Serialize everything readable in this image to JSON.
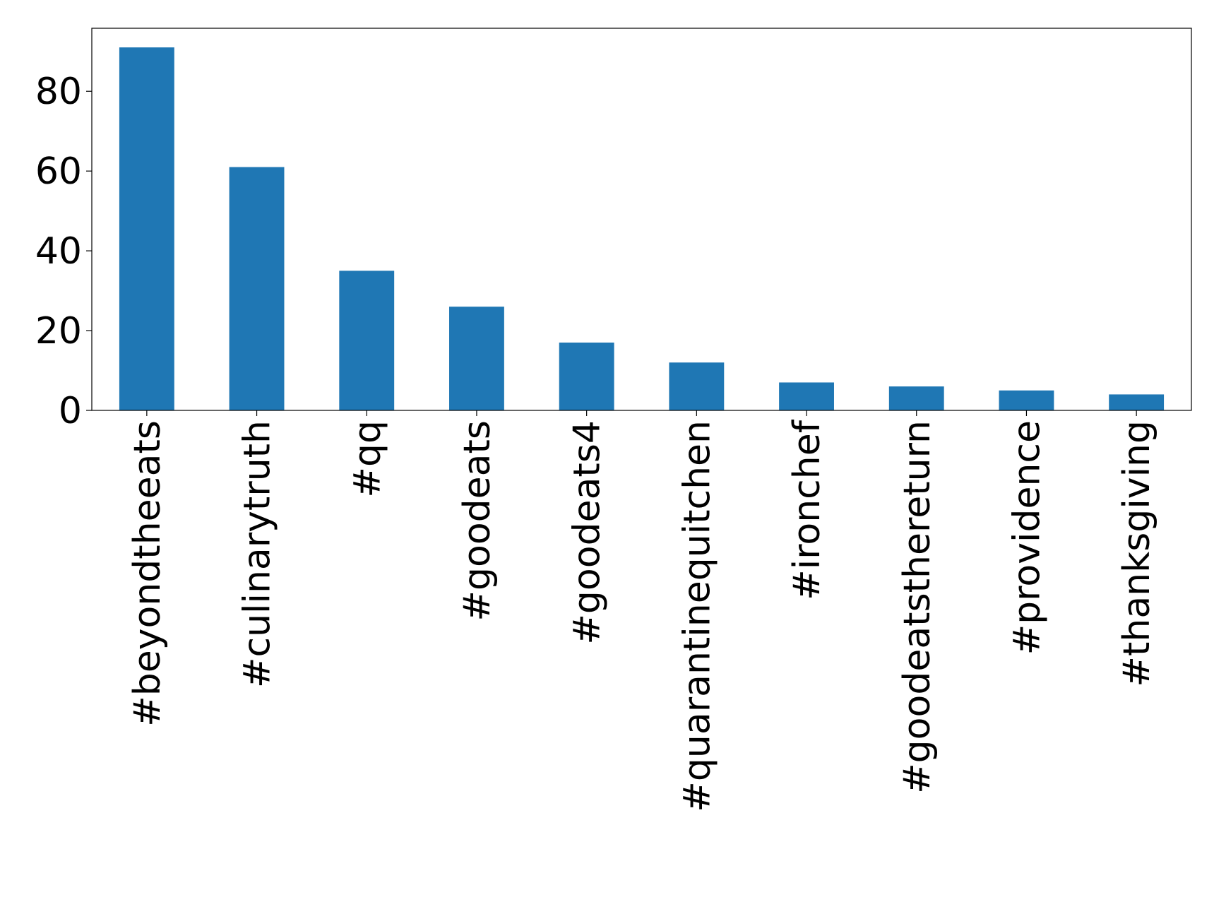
{
  "chart_data": {
    "type": "bar",
    "categories": [
      "#beyondtheeats",
      "#culinarytruth",
      "#qq",
      "#goodeats",
      "#goodeats4",
      "#quarantinequitchen",
      "#ironchef",
      "#goodeatsthereturn",
      "#providence",
      "#thanksgiving"
    ],
    "values": [
      91,
      61,
      35,
      26,
      17,
      12,
      7,
      6,
      5,
      4
    ],
    "color": "#1f77b4",
    "ylim": [
      0,
      95.8
    ],
    "yticks": [
      0,
      20,
      40,
      60,
      80
    ],
    "grid": false
  }
}
